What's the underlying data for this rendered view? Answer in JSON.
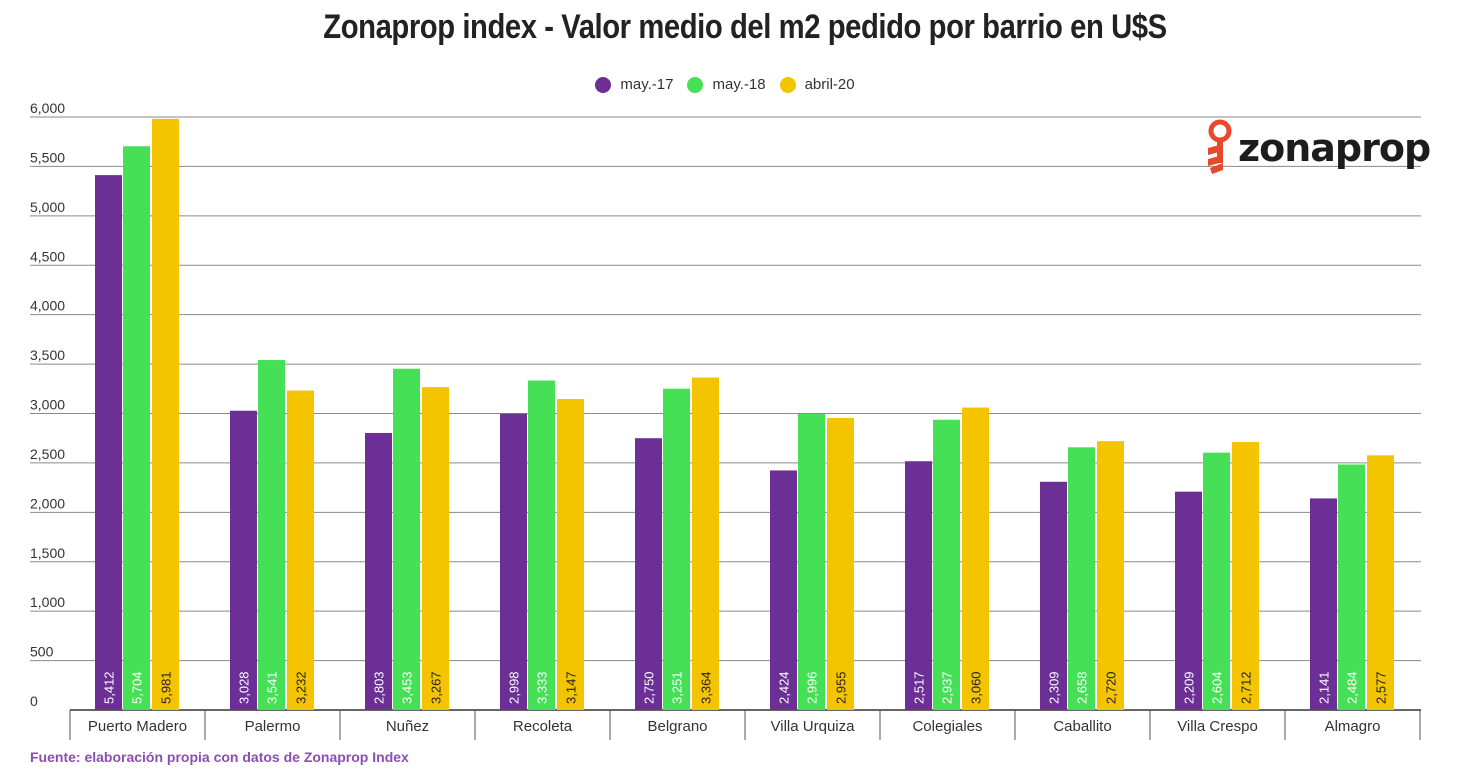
{
  "title": "Zonaprop index - Valor medio del m2 pedido por barrio en U$S",
  "source": "Fuente: elaboración propia con datos de Zonaprop Index",
  "logo": {
    "text": "zonaprop",
    "icon": "key-icon",
    "color": "#e8492c"
  },
  "chart_data": {
    "type": "bar",
    "title": "Zonaprop index - Valor medio del m2 pedido por barrio en U$S",
    "xlabel": "",
    "ylabel": "",
    "ylim": [
      0,
      6000
    ],
    "yticks": [
      "0",
      "500",
      "1,000",
      "1,500",
      "2,000",
      "2,500",
      "3,000",
      "3,500",
      "4,000",
      "4,500",
      "5,000",
      "5,500",
      "6,000"
    ],
    "ytick_values": [
      0,
      500,
      1000,
      1500,
      2000,
      2500,
      3000,
      3500,
      4000,
      4500,
      5000,
      5500,
      6000
    ],
    "grid": true,
    "legend_position": "top-center",
    "categories": [
      "Puerto Madero",
      "Palermo",
      "Nuñez",
      "Recoleta",
      "Belgrano",
      "Villa Urquiza",
      "Colegiales",
      "Caballito",
      "Villa Crespo",
      "Almagro"
    ],
    "series": [
      {
        "name": "may.-17",
        "color": "#6b2f96",
        "values": [
          5412,
          3028,
          2803,
          2998,
          2750,
          2424,
          2517,
          2309,
          2209,
          2141
        ],
        "labels": [
          "5,412",
          "3,028",
          "2,803",
          "2,998",
          "2,750",
          "2,424",
          "2,517",
          "2,309",
          "2,209",
          "2,141"
        ]
      },
      {
        "name": "may.-18",
        "color": "#46e057",
        "values": [
          5704,
          3541,
          3453,
          3333,
          3251,
          2996,
          2937,
          2658,
          2604,
          2484
        ],
        "labels": [
          "5,704",
          "3,541",
          "3,453",
          "3,333",
          "3,251",
          "2,996",
          "2,937",
          "2,658",
          "2,604",
          "2,484"
        ]
      },
      {
        "name": "abril-20",
        "color": "#f4c400",
        "values": [
          5981,
          3232,
          3267,
          3147,
          3364,
          2955,
          3060,
          2720,
          2712,
          2577
        ],
        "labels": [
          "5,981",
          "3,232",
          "3,267",
          "3,147",
          "3,364",
          "2,955",
          "3,060",
          "2,720",
          "2,712",
          "2,577"
        ]
      }
    ]
  }
}
